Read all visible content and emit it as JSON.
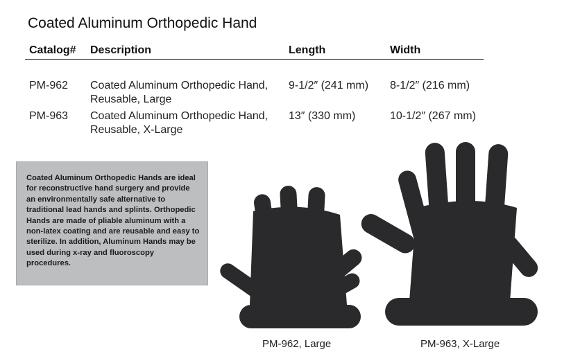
{
  "title": "Coated Aluminum Orthopedic Hand",
  "table": {
    "headers": [
      "Catalog#",
      "Description",
      "Length",
      "Width"
    ],
    "rows": [
      {
        "catalog": "PM-962",
        "desc1": "Coated Aluminum Orthopedic Hand,",
        "desc2": "Reusable, Large",
        "length": "9-1/2″ (241 mm)",
        "width": "8-1/2″ (216 mm)"
      },
      {
        "catalog": "PM-963",
        "desc1": "Coated Aluminum Orthopedic Hand,",
        "desc2": "Reusable, X-Large",
        "length": "13″ (330 mm)",
        "width": "10-1/2″ (267 mm)"
      }
    ]
  },
  "description": "Coated Aluminum Orthopedic Hands are ideal for reconstructive hand surgery and provide an environmentally safe alternative to traditional lead hands and splints. Orthopedic Hands are made of pliable aluminum with a non-latex coating and are reusable and easy to sterilize. In addition, Aluminum Hands may be used during x-ray and fluoroscopy procedures.",
  "captions": {
    "large": "PM-962, Large",
    "xlarge": "PM-963, X-Large"
  },
  "colors": {
    "hand": "#2a2a2c",
    "box": "#bdbec0"
  }
}
